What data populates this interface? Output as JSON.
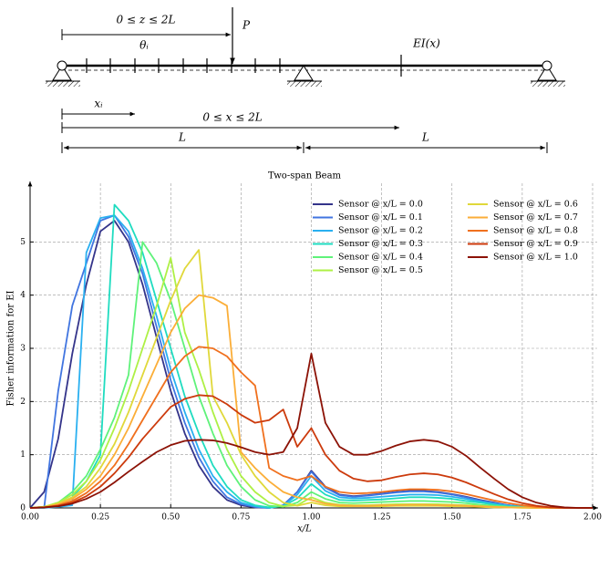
{
  "diagram": {
    "load_range": "0 ≤ z ≤ 2L",
    "load": "P",
    "rotation": "θᵢ",
    "stiffness": "EI(x)",
    "sensor_position": "xᵢ",
    "position_range": "0 ≤ x ≤ 2L",
    "span_1": "L",
    "span_2": "L"
  },
  "chart_data": {
    "type": "line",
    "title": "Two-span Beam",
    "x_label": "x/L",
    "y_label": "Fisher information for EI",
    "grid": true,
    "legend": "upper right",
    "xlim": [
      0,
      2
    ],
    "ylim": [
      0,
      6
    ],
    "xticks": [
      {
        "value": 0,
        "label": "0.00"
      },
      {
        "value": 0.25,
        "label": "0.25"
      },
      {
        "value": 0.5,
        "label": "0.50"
      },
      {
        "value": 0.75,
        "label": "0.75"
      },
      {
        "value": 1,
        "label": "1.00"
      },
      {
        "value": 1.25,
        "label": "1.25"
      },
      {
        "value": 1.5,
        "label": "1.50"
      },
      {
        "value": 1.75,
        "label": "1.75"
      },
      {
        "value": 2,
        "label": "2.00"
      }
    ],
    "yticks": [
      0,
      1,
      2,
      3,
      4,
      5
    ],
    "x": [
      0,
      0.05,
      0.1,
      0.15,
      0.2,
      0.25,
      0.3,
      0.35,
      0.4,
      0.45,
      0.5,
      0.55,
      0.6,
      0.65,
      0.7,
      0.75,
      0.8,
      0.85,
      0.9,
      0.95,
      1,
      1.05,
      1.1,
      1.15,
      1.2,
      1.25,
      1.3,
      1.35,
      1.4,
      1.45,
      1.5,
      1.55,
      1.6,
      1.65,
      1.7,
      1.75,
      1.8,
      1.85,
      1.9,
      1.95,
      2
    ],
    "series": [
      {
        "name": "Sensor @ x/L = 0.0",
        "color": "#34348a",
        "values": [
          0,
          0.3,
          1.3,
          2.9,
          4.2,
          5.2,
          5.4,
          5.0,
          4.2,
          3.2,
          2.2,
          1.4,
          0.8,
          0.4,
          0.15,
          0.05,
          0.01,
          0,
          0.05,
          0.3,
          0.7,
          0.4,
          0.25,
          0.22,
          0.24,
          0.27,
          0.3,
          0.32,
          0.32,
          0.3,
          0.26,
          0.21,
          0.15,
          0.1,
          0.05,
          0.02,
          0.01,
          0,
          0,
          0,
          0
        ]
      },
      {
        "name": "Sensor @ x/L = 0.1",
        "color": "#4175e0",
        "values": [
          0,
          0,
          2.2,
          3.8,
          4.6,
          5.4,
          5.5,
          5.1,
          4.4,
          3.4,
          2.4,
          1.6,
          0.95,
          0.5,
          0.2,
          0.07,
          0.02,
          0,
          0.05,
          0.3,
          0.68,
          0.38,
          0.24,
          0.21,
          0.23,
          0.26,
          0.29,
          0.31,
          0.31,
          0.29,
          0.25,
          0.2,
          0.14,
          0.09,
          0.05,
          0.02,
          0.01,
          0,
          0,
          0,
          0
        ]
      },
      {
        "name": "Sensor @ x/L = 0.2",
        "color": "#2ab0f0",
        "values": [
          0,
          0,
          0.02,
          0.05,
          4.8,
          5.45,
          5.5,
          5.2,
          4.5,
          3.6,
          2.6,
          1.8,
          1.1,
          0.6,
          0.3,
          0.1,
          0.03,
          0,
          0.04,
          0.25,
          0.6,
          0.32,
          0.2,
          0.18,
          0.19,
          0.21,
          0.23,
          0.25,
          0.25,
          0.24,
          0.21,
          0.17,
          0.12,
          0.08,
          0.04,
          0.02,
          0.01,
          0,
          0,
          0,
          0
        ]
      },
      {
        "name": "Sensor @ x/L = 0.3",
        "color": "#1fdcc0",
        "values": [
          0,
          0.02,
          0.08,
          0.2,
          0.5,
          1.0,
          5.7,
          5.4,
          4.8,
          3.9,
          3.0,
          2.1,
          1.4,
          0.8,
          0.4,
          0.15,
          0.05,
          0.01,
          0.03,
          0.18,
          0.45,
          0.25,
          0.15,
          0.14,
          0.15,
          0.16,
          0.18,
          0.2,
          0.2,
          0.19,
          0.17,
          0.13,
          0.1,
          0.06,
          0.03,
          0.02,
          0.01,
          0,
          0,
          0,
          0
        ]
      },
      {
        "name": "Sensor @ x/L = 0.4",
        "color": "#5ff27a",
        "values": [
          0,
          0.02,
          0.1,
          0.3,
          0.6,
          1.1,
          1.7,
          2.5,
          5.0,
          4.6,
          3.9,
          3.0,
          2.1,
          1.4,
          0.8,
          0.4,
          0.15,
          0.04,
          0.02,
          0.1,
          0.3,
          0.17,
          0.1,
          0.09,
          0.1,
          0.11,
          0.12,
          0.13,
          0.13,
          0.12,
          0.11,
          0.09,
          0.06,
          0.04,
          0.02,
          0.01,
          0,
          0,
          0,
          0,
          0
        ]
      },
      {
        "name": "Sensor @ x/L = 0.5",
        "color": "#aef045",
        "values": [
          0,
          0.02,
          0.1,
          0.25,
          0.5,
          0.9,
          1.5,
          2.2,
          3.0,
          3.8,
          4.7,
          3.3,
          2.6,
          1.8,
          1.1,
          0.6,
          0.3,
          0.1,
          0.03,
          0.05,
          0.2,
          0.1,
          0.06,
          0.05,
          0.05,
          0.06,
          0.07,
          0.07,
          0.07,
          0.07,
          0.06,
          0.05,
          0.04,
          0.02,
          0.01,
          0.01,
          0,
          0,
          0,
          0,
          0
        ]
      },
      {
        "name": "Sensor @ x/L = 0.6",
        "color": "#e0d83a",
        "values": [
          0,
          0.02,
          0.08,
          0.2,
          0.4,
          0.75,
          1.2,
          1.8,
          2.5,
          3.2,
          3.9,
          4.5,
          4.85,
          2.1,
          1.6,
          1.0,
          0.6,
          0.3,
          0.1,
          0.04,
          0.1,
          0.05,
          0.03,
          0.03,
          0.03,
          0.03,
          0.04,
          0.04,
          0.04,
          0.04,
          0.03,
          0.03,
          0.02,
          0.01,
          0.01,
          0,
          0,
          0,
          0,
          0,
          0
        ]
      },
      {
        "name": "Sensor @ x/L = 0.7",
        "color": "#fbae38",
        "values": [
          0,
          0.01,
          0.07,
          0.17,
          0.35,
          0.6,
          1.0,
          1.5,
          2.1,
          2.7,
          3.3,
          3.75,
          4.0,
          3.95,
          3.8,
          1.05,
          0.75,
          0.5,
          0.3,
          0.2,
          0.15,
          0.08,
          0.05,
          0.04,
          0.04,
          0.05,
          0.05,
          0.06,
          0.06,
          0.05,
          0.05,
          0.04,
          0.03,
          0.02,
          0.01,
          0.01,
          0,
          0,
          0,
          0,
          0
        ]
      },
      {
        "name": "Sensor @ x/L = 0.8",
        "color": "#f0701e",
        "values": [
          0,
          0.01,
          0.05,
          0.13,
          0.28,
          0.5,
          0.8,
          1.2,
          1.65,
          2.1,
          2.55,
          2.85,
          3.03,
          3.0,
          2.85,
          2.55,
          2.3,
          0.75,
          0.6,
          0.52,
          0.6,
          0.4,
          0.3,
          0.27,
          0.28,
          0.3,
          0.33,
          0.35,
          0.35,
          0.34,
          0.31,
          0.26,
          0.2,
          0.14,
          0.09,
          0.05,
          0.02,
          0.01,
          0,
          0,
          0
        ]
      },
      {
        "name": "Sensor @ x/L = 0.9",
        "color": "#cc3a0c",
        "values": [
          0,
          0.01,
          0.04,
          0.1,
          0.22,
          0.4,
          0.65,
          0.95,
          1.3,
          1.6,
          1.9,
          2.05,
          2.12,
          2.1,
          1.95,
          1.75,
          1.6,
          1.65,
          1.85,
          1.15,
          1.5,
          1.0,
          0.7,
          0.55,
          0.5,
          0.52,
          0.58,
          0.63,
          0.65,
          0.63,
          0.57,
          0.48,
          0.37,
          0.26,
          0.16,
          0.09,
          0.04,
          0.01,
          0,
          0,
          0
        ]
      },
      {
        "name": "Sensor @ x/L = 1.0",
        "color": "#8c1206",
        "values": [
          0,
          0.01,
          0.03,
          0.08,
          0.17,
          0.3,
          0.48,
          0.68,
          0.87,
          1.05,
          1.18,
          1.26,
          1.28,
          1.27,
          1.22,
          1.14,
          1.05,
          1.0,
          1.05,
          1.5,
          2.9,
          1.6,
          1.15,
          1.0,
          1.0,
          1.07,
          1.17,
          1.25,
          1.28,
          1.25,
          1.15,
          0.98,
          0.76,
          0.55,
          0.35,
          0.2,
          0.1,
          0.04,
          0.01,
          0,
          0
        ]
      }
    ]
  }
}
